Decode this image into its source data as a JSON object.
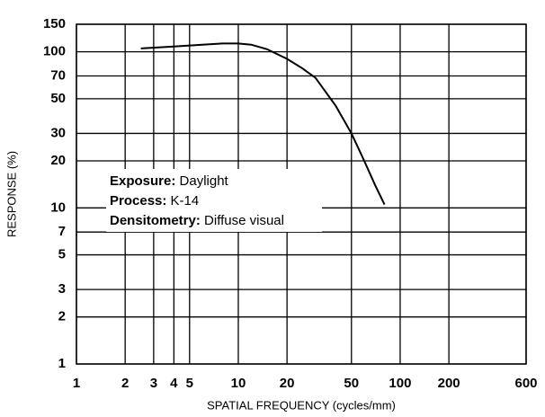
{
  "chart_data": {
    "type": "line",
    "x_label": "SPATIAL FREQUENCY (cycles/mm)",
    "y_label": "RESPONSE (%)",
    "xscale": "log",
    "yscale": "log",
    "grid": true,
    "xlim": [
      1,
      600
    ],
    "xticks": [
      1,
      2,
      3,
      4,
      5,
      10,
      20,
      50,
      100,
      200,
      600
    ],
    "ylim": [
      1,
      150
    ],
    "yticks": [
      1,
      2,
      3,
      5,
      7,
      10,
      20,
      30,
      50,
      70,
      100,
      150
    ],
    "series": [
      {
        "color": "#000000",
        "x": [
          2.5,
          4,
          6,
          8,
          10,
          12,
          15,
          20,
          25,
          30,
          40,
          50,
          60,
          70,
          80
        ],
        "values": [
          105,
          108,
          111,
          113,
          113,
          111,
          104,
          90,
          78,
          68,
          45,
          30,
          20,
          14,
          10.5
        ]
      }
    ],
    "annotations": [
      {
        "label": "Exposure:",
        "text": "Daylight"
      },
      {
        "label": "Process:",
        "text": "K-14"
      },
      {
        "label": "Densitometry:",
        "text": "Diffuse visual"
      }
    ]
  }
}
